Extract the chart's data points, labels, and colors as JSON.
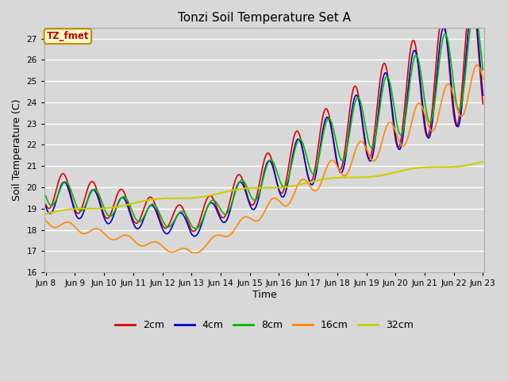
{
  "title": "Tonzi Soil Temperature Set A",
  "xlabel": "Time",
  "ylabel": "Soil Temperature (C)",
  "ylim": [
    16.0,
    27.5
  ],
  "yticks": [
    16.0,
    17.0,
    18.0,
    19.0,
    20.0,
    21.0,
    22.0,
    23.0,
    24.0,
    25.0,
    26.0,
    27.0
  ],
  "bg_color": "#d8d8d8",
  "colors": {
    "2cm": "#dd0000",
    "4cm": "#0000cc",
    "8cm": "#00bb00",
    "16cm": "#ff8800",
    "32cm": "#cccc00"
  },
  "legend_labels": [
    "2cm",
    "4cm",
    "8cm",
    "16cm",
    "32cm"
  ],
  "annotation_text": "TZ_fmet",
  "annotation_bg": "#ffffcc",
  "annotation_border": "#cc8800",
  "n_points": 720,
  "x_start": 8,
  "x_end": 23,
  "xtick_positions": [
    8,
    9,
    10,
    11,
    12,
    13,
    14,
    15,
    16,
    17,
    18,
    19,
    20,
    21,
    22,
    23
  ],
  "xtick_labels": [
    "Jun 8",
    "Jun 9",
    "Jun 10",
    "Jun 11",
    "Jun 12",
    "Jun 13",
    "Jun 14",
    "Jun 15",
    "Jun 16",
    "Jun 17",
    "Jun 18",
    "Jun 19",
    "Jun 20",
    "Jun 21",
    "Jun 22",
    "Jun 23"
  ]
}
